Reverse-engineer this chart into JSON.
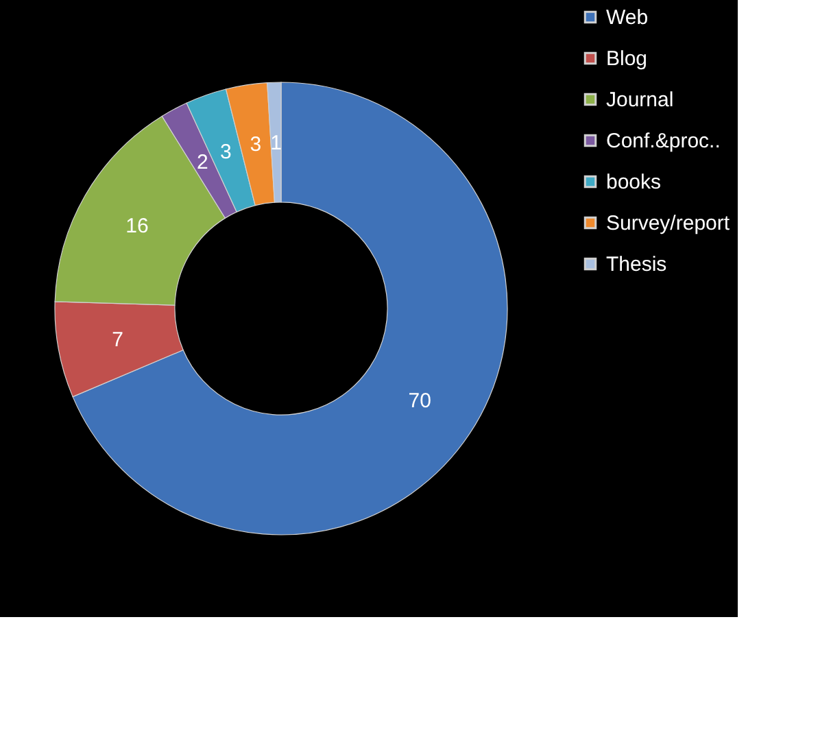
{
  "chart_data": {
    "type": "donut",
    "categories": [
      "Web",
      "Blog",
      "Journal",
      "Conf.&proc..",
      "books",
      "Survey/report",
      "Thesis"
    ],
    "values": [
      70,
      7,
      16,
      2,
      3,
      3,
      1
    ],
    "colors": [
      "#3f72b8",
      "#c0504d",
      "#8db04a",
      "#7b5aa0",
      "#3fa9c4",
      "#ee8a2e",
      "#a9bfdf"
    ],
    "data_labels": true,
    "legend": "right"
  }
}
